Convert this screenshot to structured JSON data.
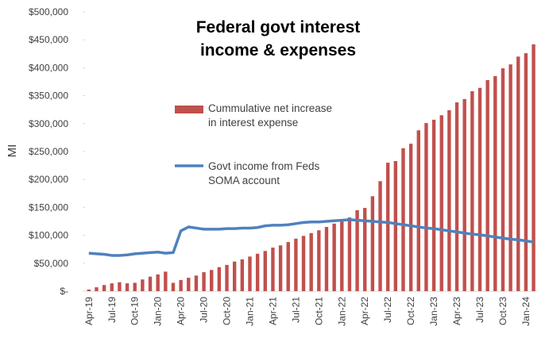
{
  "chart_data": {
    "type": "bar-line",
    "title": "Federal govt interest income & expenses",
    "y_label": "MI",
    "categories": [
      "Apr-19",
      null,
      null,
      "Jul-19",
      null,
      null,
      "Oct-19",
      null,
      null,
      "Jan-20",
      null,
      null,
      "Apr-20",
      null,
      null,
      "Jul-20",
      null,
      null,
      "Oct-20",
      null,
      null,
      "Jan-21",
      null,
      null,
      "Apr-21",
      null,
      null,
      "Jul-21",
      null,
      null,
      "Oct-21",
      null,
      null,
      "Jan-22",
      null,
      null,
      "Apr-22",
      null,
      null,
      "Jul-22",
      null,
      null,
      "Oct-22",
      null,
      null,
      "Jan-23",
      null,
      null,
      "Apr-23",
      null,
      null,
      "Jul-23",
      null,
      null,
      "Oct-23",
      null,
      null,
      "Jan-24",
      null
    ],
    "series": [
      {
        "name": "Cummulative net increase in interest expense",
        "color": "#c0504d",
        "kind": "bar",
        "values": [
          3000,
          7000,
          11000,
          14000,
          16000,
          14000,
          15000,
          21000,
          26000,
          30000,
          35000,
          15000,
          20000,
          24000,
          28000,
          34000,
          38000,
          43000,
          47000,
          53000,
          57000,
          62000,
          67000,
          72000,
          78000,
          82000,
          88000,
          94000,
          99000,
          104000,
          109000,
          115000,
          121000,
          126000,
          132000,
          145000,
          149000,
          170000,
          197000,
          230000,
          233000,
          256000,
          264000,
          288000,
          301000,
          307000,
          315000,
          324000,
          338000,
          344000,
          358000,
          364000,
          378000,
          385000,
          399000,
          406000,
          420000,
          426000,
          442000
        ]
      },
      {
        "name": "Govt income from Feds SOMA account",
        "color": "#4f81bd",
        "kind": "line",
        "values": [
          68000,
          67000,
          66000,
          64000,
          64000,
          65000,
          67000,
          68000,
          69000,
          70000,
          68000,
          69000,
          108000,
          115000,
          113000,
          111000,
          111000,
          111000,
          112000,
          112000,
          113000,
          113000,
          114000,
          117000,
          118000,
          118000,
          119000,
          121000,
          123000,
          124000,
          124000,
          125000,
          126000,
          127000,
          128000,
          127000,
          126000,
          125000,
          124000,
          123000,
          121000,
          119000,
          117000,
          115000,
          113000,
          112000,
          110000,
          108000,
          106000,
          104000,
          102000,
          101000,
          99000,
          97000,
          95000,
          93000,
          92000,
          90000,
          88000
        ]
      }
    ],
    "ylim": [
      0,
      500000
    ],
    "yticks": [
      {
        "value": 0,
        "label": "$-"
      },
      {
        "value": 50000,
        "label": "$50,000"
      },
      {
        "value": 100000,
        "label": "$100,000"
      },
      {
        "value": 150000,
        "label": "$150,000"
      },
      {
        "value": 200000,
        "label": "$200,000"
      },
      {
        "value": 250000,
        "label": "$250,000"
      },
      {
        "value": 300000,
        "label": "$300,000"
      },
      {
        "value": 350000,
        "label": "$350,000"
      },
      {
        "value": 400000,
        "label": "$400,000"
      },
      {
        "value": 450000,
        "label": "$450,000"
      },
      {
        "value": 500000,
        "label": "$500,000"
      }
    ],
    "grid": false
  }
}
